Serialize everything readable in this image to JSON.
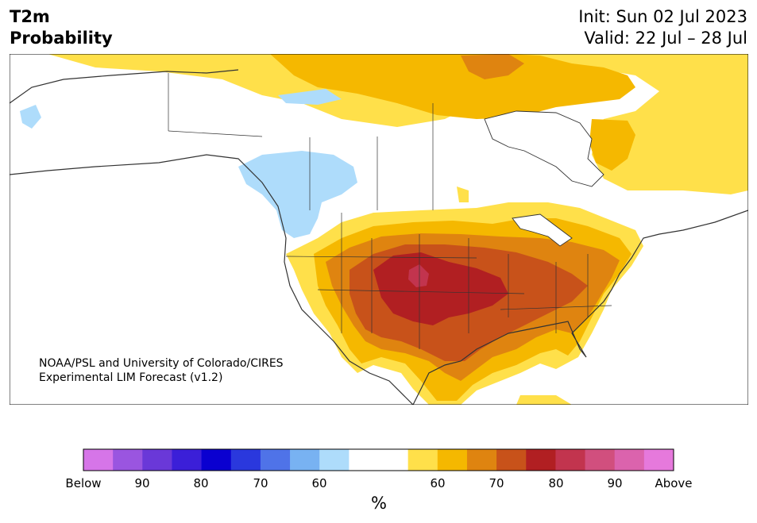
{
  "title": {
    "variable": "T2m",
    "subtitle": "Probability",
    "init": "Init: Sun 02 Jul 2023",
    "valid": "Valid: 22 Jul – 28 Jul"
  },
  "credit": {
    "line1": "NOAA/PSL and University of Colorado/CIRES",
    "line2": "Experimental LIM Forecast (v1.2)"
  },
  "colorbar": {
    "unit": "%",
    "colors": [
      "#d675e8",
      "#9a55e0",
      "#6a38d8",
      "#3b1fd8",
      "#0a00d0",
      "#2a38dd",
      "#4f73e8",
      "#78b2f2",
      "#aedcfb",
      "#ffffff",
      "#ffffff",
      "#ffe04a",
      "#f5b800",
      "#df8410",
      "#c8521a",
      "#b11f22",
      "#c2344e",
      "#d14f7e",
      "#db63ad",
      "#e679dc"
    ],
    "tick_labels": [
      "Below",
      "90",
      "80",
      "70",
      "60",
      "60",
      "70",
      "80",
      "90",
      "Above"
    ]
  },
  "legend_colors": {
    "above_50": "#ffe04a",
    "above_60": "#f5b800",
    "above_70": "#df8410",
    "above_75": "#c8521a",
    "above_80": "#b11f22",
    "above_85": "#c2344e",
    "below_60": "#aedcfb"
  }
}
